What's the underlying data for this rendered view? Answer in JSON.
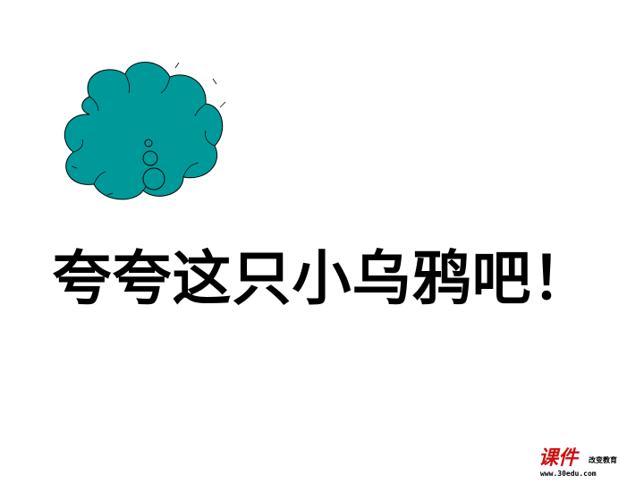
{
  "slide": {
    "headline": "夸夸这只小乌鸦吧！",
    "background_color": "#ffffff",
    "text_color": "#000000"
  },
  "thought_bubble": {
    "icon": "thought-cloud-icon",
    "fill_color": "#009999",
    "stroke_color": "#000000"
  },
  "logo": {
    "mark": "课件",
    "tagline": "改变教育",
    "url": "www.30edu.com",
    "color": "#cc1111"
  }
}
